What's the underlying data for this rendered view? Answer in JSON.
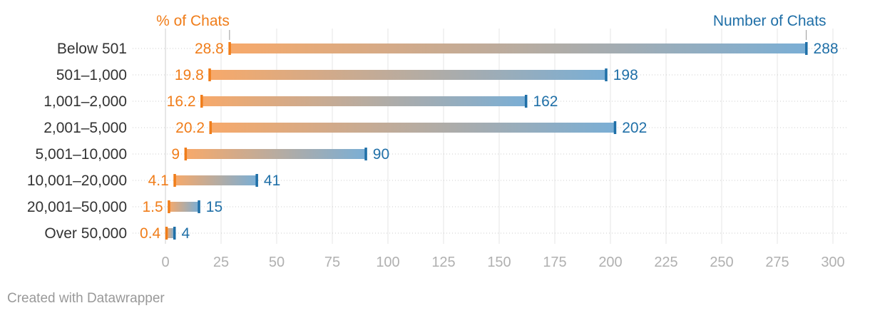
{
  "chart_data": {
    "type": "range-bar",
    "categories": [
      "Below 501",
      "501–1,000",
      "1,001–2,000",
      "2,001–5,000",
      "5,001–10,000",
      "10,001–20,000",
      "20,001–50,000",
      "Over 50,000"
    ],
    "series": [
      {
        "name": "% of Chats",
        "values": [
          28.8,
          19.8,
          16.2,
          20.2,
          9,
          4.1,
          1.5,
          0.4
        ],
        "color": "#f07d1a"
      },
      {
        "name": "Number of Chats",
        "values": [
          288,
          198,
          162,
          202,
          90,
          41,
          15,
          4
        ],
        "color": "#1f6fa7"
      }
    ],
    "xlim": [
      0,
      300
    ],
    "xticks": [
      0,
      25,
      50,
      75,
      100,
      125,
      150,
      175,
      200,
      225,
      250,
      275,
      300
    ],
    "grid": true,
    "legend": "top"
  },
  "footer": {
    "credit": "Created with Datawrapper"
  }
}
